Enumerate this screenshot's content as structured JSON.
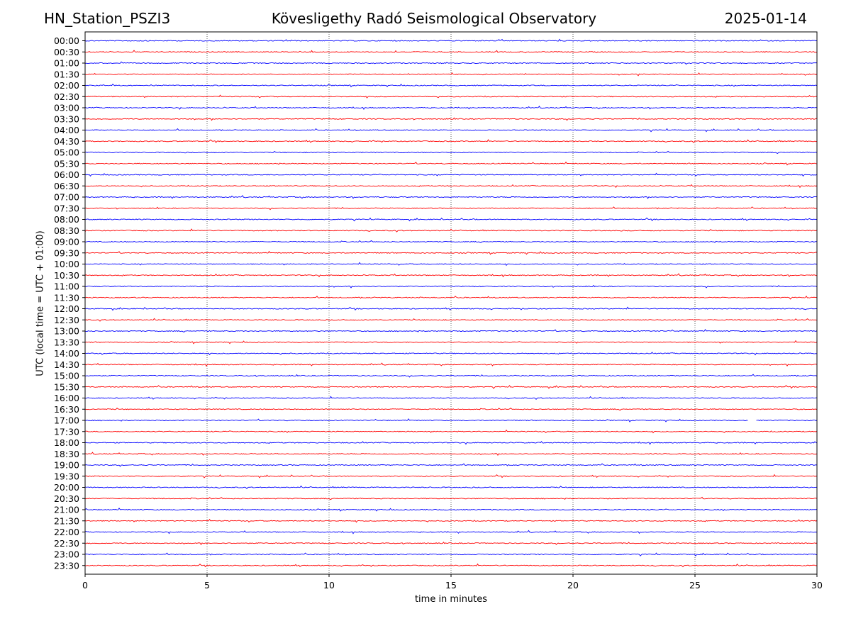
{
  "header": {
    "station": "HN_Station_PSZI3",
    "title": "Kövesligethy Radó Seismological Observatory",
    "date": "2025-01-14"
  },
  "chart_data": {
    "type": "line",
    "title": "Kövesligethy Radó Seismological Observatory",
    "xlabel": "time in minutes",
    "ylabel": "UTC (local time = UTC + 01:00)",
    "xlim": [
      0,
      30
    ],
    "x_ticks": [
      0,
      5,
      10,
      15,
      20,
      25,
      30
    ],
    "grid": "vertical dotted at x ticks",
    "colors": {
      "even_rows": "#0000ff",
      "odd_rows": "#ff0000"
    },
    "row_labels": [
      "00:00",
      "00:30",
      "01:00",
      "01:30",
      "02:00",
      "02:30",
      "03:00",
      "03:30",
      "04:00",
      "04:30",
      "05:00",
      "05:30",
      "06:00",
      "06:30",
      "07:00",
      "07:30",
      "08:00",
      "08:30",
      "09:00",
      "09:30",
      "10:00",
      "10:30",
      "11:00",
      "11:30",
      "12:00",
      "12:30",
      "13:00",
      "13:30",
      "14:00",
      "14:30",
      "15:00",
      "15:30",
      "16:00",
      "16:30",
      "17:00",
      "17:30",
      "18:00",
      "18:30",
      "19:00",
      "19:30",
      "20:00",
      "20:30",
      "21:00",
      "21:30",
      "22:00",
      "22:30",
      "23:00",
      "23:30"
    ],
    "gaps": [
      {
        "row": "17:00",
        "x_start": 27.2,
        "x_end": 27.5
      }
    ]
  }
}
